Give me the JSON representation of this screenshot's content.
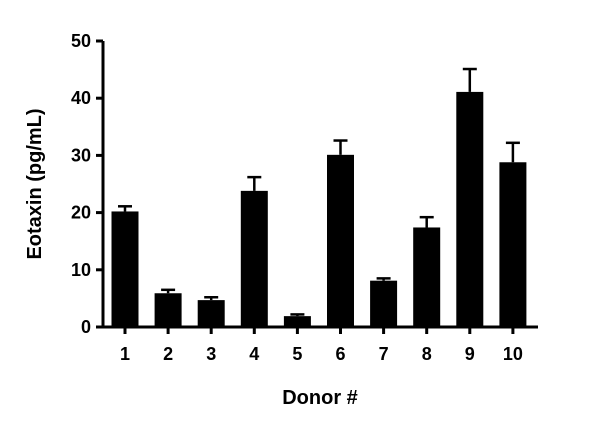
{
  "chart_data": {
    "type": "bar",
    "categories": [
      "1",
      "2",
      "3",
      "4",
      "5",
      "6",
      "7",
      "8",
      "9",
      "10"
    ],
    "series": [
      {
        "values": [
          20.2,
          5.9,
          4.7,
          23.8,
          1.9,
          30.1,
          8.1,
          17.4,
          41.1,
          28.8
        ],
        "errors": [
          0.9,
          0.6,
          0.5,
          2.4,
          0.3,
          2.5,
          0.4,
          1.8,
          4.0,
          3.4
        ],
        "color": "#000000"
      }
    ],
    "title": "",
    "xlabel": "Donor #",
    "ylabel": "Eotaxin (pg/mL)",
    "ylim": [
      0,
      50
    ],
    "yticks": [
      0,
      10,
      20,
      30,
      40,
      50
    ],
    "grid": false,
    "error_bars": "upper"
  }
}
